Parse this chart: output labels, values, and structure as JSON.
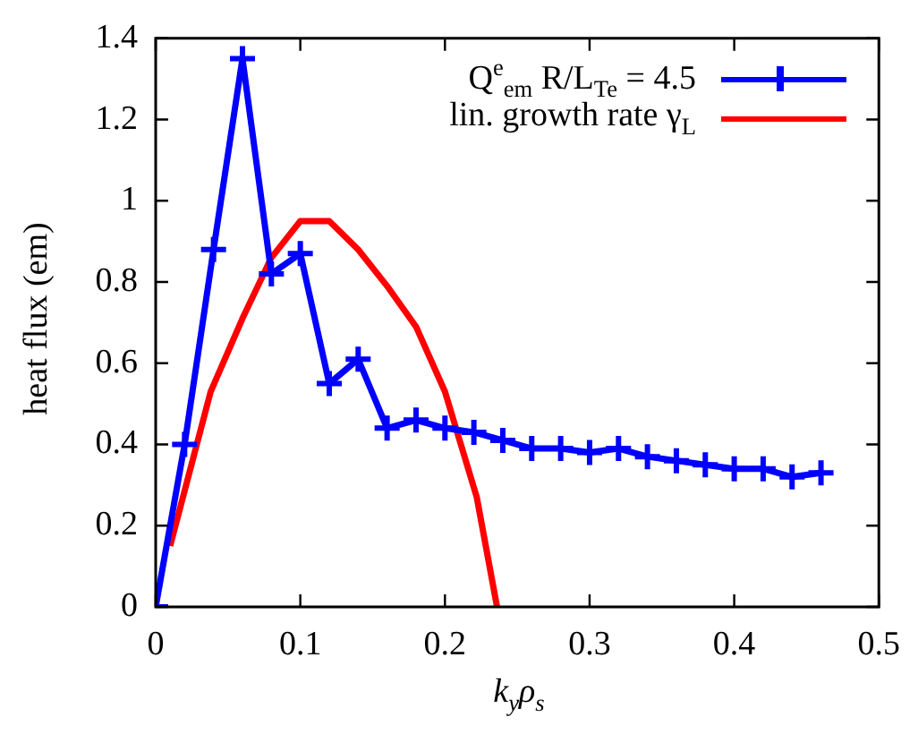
{
  "chart_data": {
    "type": "line",
    "xlabel": "k$_{y}$ρ$_{s}$",
    "ylabel": "heat flux (em)",
    "xlim": [
      0,
      0.5
    ],
    "xticks": [
      0,
      0.1,
      0.2,
      0.3,
      0.4,
      0.5
    ],
    "ylim": [
      0,
      1.4
    ],
    "yticks": [
      0,
      0.2,
      0.4,
      0.6,
      0.8,
      1,
      1.2,
      1.4
    ],
    "grid": false,
    "legend": "top right",
    "marker": "cross",
    "line_style": "solid",
    "series": [
      {
        "name": "Q$^{e}$$_{em}$ R/L$_{Te}$ = 4.5",
        "color": "#0000ff",
        "x": [
          0,
          0.02,
          0.04,
          0.06,
          0.08,
          0.1,
          0.12,
          0.14,
          0.16,
          0.18,
          0.2,
          0.22,
          0.24,
          0.26,
          0.28,
          0.3,
          0.32,
          0.34,
          0.36,
          0.38,
          0.4,
          0.42,
          0.44,
          0.46
        ],
        "values": [
          0,
          0.4,
          0.88,
          1.35,
          0.82,
          0.87,
          0.55,
          0.61,
          0.44,
          0.46,
          0.44,
          0.43,
          0.41,
          0.39,
          0.39,
          0.38,
          0.39,
          0.37,
          0.36,
          0.35,
          0.34,
          0.34,
          0.32,
          0.33
        ]
      },
      {
        "name": "lin. growth rate γ$_{L}$",
        "color": "#ff0000",
        "marker": "none",
        "x": [
          0.01,
          0.038,
          0.06,
          0.08,
          0.1,
          0.12,
          0.14,
          0.16,
          0.18,
          0.2,
          0.222,
          0.236
        ],
        "values": [
          0.15,
          0.53,
          0.71,
          0.86,
          0.95,
          0.95,
          0.88,
          0.79,
          0.69,
          0.53,
          0.27,
          0
        ]
      }
    ]
  }
}
